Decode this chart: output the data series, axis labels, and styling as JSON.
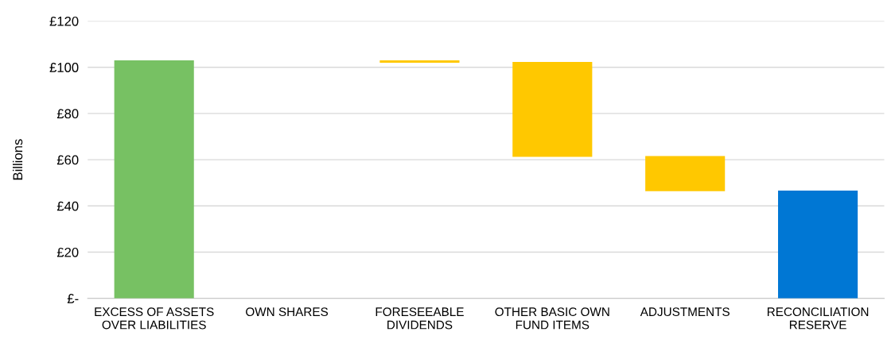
{
  "chart_data": {
    "type": "bar",
    "ylabel": "Billions",
    "categories": [
      "EXCESS OF ASSETS\nOVER LIABILITIES",
      "OWN SHARES",
      "FORESEEABLE\nDIVIDENDS",
      "OTHER BASIC OWN\nFUND ITEMS",
      "ADJUSTMENTS",
      "RECONCILIATION\nRESERVE"
    ],
    "values": [
      103,
      0,
      1,
      41.1,
      15.2,
      46.6
    ],
    "base": [
      0,
      null,
      102,
      61.2,
      46.4,
      0
    ],
    "colors": [
      "#77c163",
      "#ffc800",
      "#ffc800",
      "#ffc800",
      "#ffc800",
      "#0077d4"
    ],
    "ylim": [
      0,
      120
    ],
    "yticks": [
      {
        "value": 0,
        "label": "£-"
      },
      {
        "value": 20,
        "label": "£20"
      },
      {
        "value": 40,
        "label": "£40"
      },
      {
        "value": 60,
        "label": "£60"
      },
      {
        "value": 80,
        "label": "£80"
      },
      {
        "value": 100,
        "label": "£100"
      },
      {
        "value": 120,
        "label": "£120"
      }
    ],
    "grid": "y"
  }
}
